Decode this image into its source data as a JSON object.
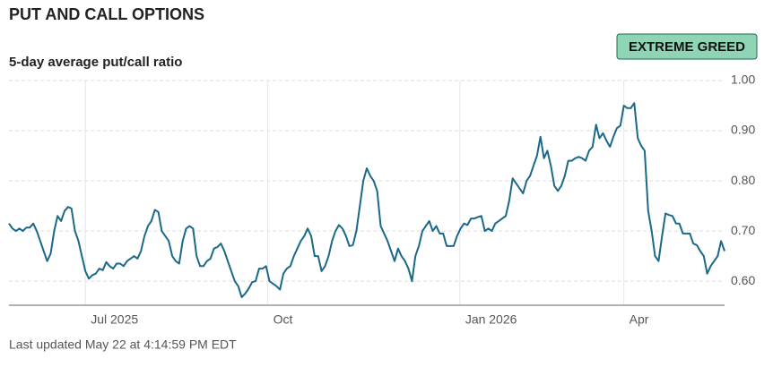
{
  "chart_data": {
    "type": "line",
    "title": "PUT AND CALL OPTIONS",
    "subtitle": "5-day average put/call ratio",
    "badge": "EXTREME GREED",
    "footer": "Last updated May 22 at 4:14:59 PM EDT",
    "color": "#1b6889",
    "grid": true,
    "xlim": [
      0,
      206
    ],
    "xticks": [
      {
        "value": 22,
        "label": "Jul 2025"
      },
      {
        "value": 74.5,
        "label": "Oct"
      },
      {
        "value": 129.8,
        "label": "Jan 2026"
      },
      {
        "value": 177,
        "label": "Apr"
      }
    ],
    "ylim": [
      0.552,
      1.0
    ],
    "yticks": [
      {
        "value": 0.6,
        "label": "0.60"
      },
      {
        "value": 0.7,
        "label": "0.70"
      },
      {
        "value": 0.8,
        "label": "0.80"
      },
      {
        "value": 0.9,
        "label": "0.90"
      },
      {
        "value": 1.0,
        "label": "1.00"
      }
    ],
    "values": [
      0.715,
      0.705,
      0.7,
      0.705,
      0.7,
      0.707,
      0.707,
      0.715,
      0.7,
      0.68,
      0.66,
      0.64,
      0.655,
      0.7,
      0.73,
      0.72,
      0.74,
      0.748,
      0.745,
      0.7,
      0.68,
      0.65,
      0.62,
      0.605,
      0.612,
      0.615,
      0.625,
      0.622,
      0.638,
      0.63,
      0.625,
      0.635,
      0.635,
      0.63,
      0.64,
      0.645,
      0.65,
      0.645,
      0.66,
      0.69,
      0.71,
      0.72,
      0.742,
      0.738,
      0.7,
      0.69,
      0.68,
      0.65,
      0.64,
      0.635,
      0.68,
      0.705,
      0.71,
      0.705,
      0.65,
      0.63,
      0.63,
      0.64,
      0.645,
      0.665,
      0.668,
      0.675,
      0.66,
      0.64,
      0.62,
      0.6,
      0.59,
      0.568,
      0.575,
      0.585,
      0.598,
      0.6,
      0.625,
      0.625,
      0.63,
      0.6,
      0.595,
      0.59,
      0.583,
      0.615,
      0.625,
      0.63,
      0.65,
      0.665,
      0.68,
      0.69,
      0.705,
      0.69,
      0.65,
      0.65,
      0.62,
      0.63,
      0.65,
      0.68,
      0.7,
      0.712,
      0.705,
      0.69,
      0.67,
      0.672,
      0.7,
      0.75,
      0.8,
      0.825,
      0.81,
      0.8,
      0.78,
      0.71,
      0.695,
      0.68,
      0.66,
      0.64,
      0.665,
      0.65,
      0.64,
      0.625,
      0.6,
      0.65,
      0.67,
      0.7,
      0.71,
      0.72,
      0.7,
      0.71,
      0.695,
      0.695,
      0.67,
      0.67,
      0.67,
      0.69,
      0.705,
      0.715,
      0.712,
      0.725,
      0.725,
      0.728,
      0.73,
      0.7,
      0.705,
      0.7,
      0.715,
      0.72,
      0.725,
      0.73,
      0.76,
      0.805,
      0.795,
      0.785,
      0.775,
      0.8,
      0.81,
      0.83,
      0.85,
      0.888,
      0.845,
      0.86,
      0.83,
      0.79,
      0.78,
      0.79,
      0.81,
      0.84,
      0.84,
      0.845,
      0.848,
      0.845,
      0.84,
      0.86,
      0.868,
      0.912,
      0.885,
      0.895,
      0.88,
      0.868,
      0.888,
      0.905,
      0.91,
      0.95,
      0.945,
      0.945,
      0.955,
      0.885,
      0.87,
      0.86,
      0.74,
      0.7,
      0.65,
      0.64,
      0.69,
      0.735,
      0.732,
      0.73,
      0.715,
      0.715,
      0.695,
      0.695,
      0.695,
      0.675,
      0.672,
      0.66,
      0.65,
      0.615,
      0.63,
      0.64,
      0.65,
      0.68,
      0.66
    ]
  }
}
